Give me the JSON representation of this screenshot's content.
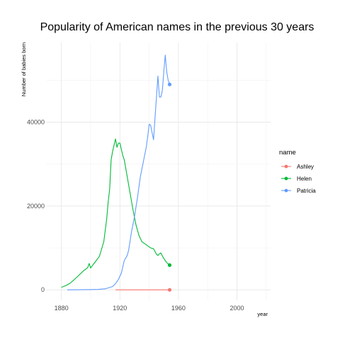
{
  "chart_data": {
    "type": "line",
    "title": "Popularity of American names in the previous 30 years",
    "xlabel": "year",
    "ylabel": "Number of babies born",
    "xlim": [
      1870,
      2023
    ],
    "ylim": [
      -2500,
      59000
    ],
    "x_ticks": [
      1880,
      1920,
      1960,
      2000
    ],
    "x_minor_ticks": [
      1900,
      1940,
      1980,
      2020
    ],
    "y_ticks": [
      0,
      20000,
      40000
    ],
    "y_minor_ticks": [
      10000,
      30000,
      50000
    ],
    "x_tick_labels": [
      "1880",
      "1920",
      "1960",
      "2000"
    ],
    "y_tick_labels": [
      "0",
      "20000",
      "40000"
    ],
    "grid": true,
    "legend": {
      "title": "name",
      "position": "right"
    },
    "series": [
      {
        "name": "Ashley",
        "color": "#F8766D",
        "x": [
          1917,
          1925,
          1935,
          1945,
          1954
        ],
        "y": [
          5,
          5,
          5,
          5,
          5
        ],
        "end_point": [
          1954,
          5
        ]
      },
      {
        "name": "Helen",
        "color": "#00BA38",
        "x": [
          1880,
          1883,
          1886,
          1889,
          1892,
          1895,
          1898,
          1899,
          1900,
          1901,
          1903,
          1906,
          1909,
          1911,
          1912,
          1913,
          1914,
          1915,
          1916,
          1917,
          1918,
          1919,
          1920,
          1921,
          1922,
          1923,
          1925,
          1927,
          1929,
          1931,
          1933,
          1935,
          1937,
          1939,
          1941,
          1943,
          1945,
          1946,
          1947,
          1948,
          1949,
          1950,
          1951,
          1952,
          1954
        ],
        "y": [
          600,
          1000,
          1600,
          2500,
          3500,
          4500,
          5300,
          6300,
          5200,
          5700,
          6600,
          8000,
          11500,
          17000,
          21000,
          24000,
          31000,
          33000,
          34500,
          36000,
          34000,
          35000,
          35000,
          33500,
          32000,
          31000,
          27000,
          23000,
          19000,
          15500,
          13000,
          11500,
          11000,
          10500,
          10000,
          9800,
          8500,
          8200,
          8600,
          8800,
          8100,
          7500,
          7000,
          6500,
          5900
        ],
        "end_point": [
          1954,
          5900
        ]
      },
      {
        "name": "Patricia",
        "color": "#619CFF",
        "x": [
          1884,
          1895,
          1905,
          1910,
          1915,
          1917,
          1919,
          1921,
          1923,
          1925,
          1926,
          1928,
          1930,
          1932,
          1934,
          1936,
          1938,
          1939,
          1940,
          1941,
          1942,
          1943,
          1944,
          1945,
          1946,
          1947,
          1948,
          1949,
          1950,
          1951,
          1952,
          1953,
          1954
        ],
        "y": [
          10,
          40,
          100,
          250,
          800,
          1500,
          2500,
          4000,
          7000,
          8200,
          9500,
          14000,
          17500,
          22000,
          27000,
          30500,
          34000,
          36500,
          39500,
          39300,
          37500,
          35800,
          41000,
          46000,
          51000,
          46000,
          46000,
          47500,
          52000,
          56000,
          52000,
          50000,
          49000
        ],
        "end_point": [
          1954,
          49000
        ]
      }
    ]
  }
}
